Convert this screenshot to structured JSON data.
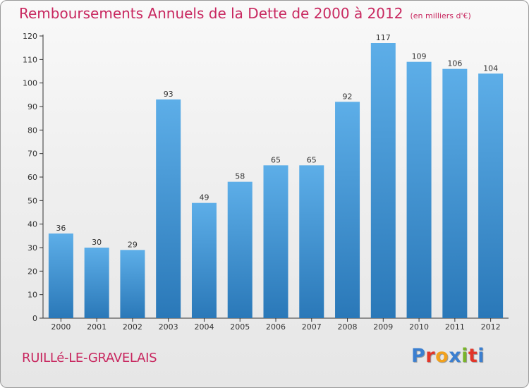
{
  "header": {
    "title": "Remboursements Annuels de la Dette de 2000 à 2012",
    "subtitle": "(en milliers d'€)"
  },
  "footer": {
    "commune": "RUILLé-LE-GRAVELAIS",
    "brand": "Proxiti",
    "brand_colors": [
      "#3b7fd0",
      "#e2362a",
      "#f2a11c",
      "#3b7fd0",
      "#79b42a",
      "#e2362a",
      "#3b7fd0"
    ]
  },
  "colors": {
    "title": "#c8275f",
    "bar_top": "#5daee8",
    "bar_bottom": "#2a78b8",
    "axis": "#333333"
  },
  "chart_data": {
    "type": "bar",
    "title": "Remboursements Annuels de la Dette de 2000 à 2012",
    "subtitle": "(en milliers d'€)",
    "xlabel": "",
    "ylabel": "",
    "categories": [
      "2000",
      "2001",
      "2002",
      "2003",
      "2004",
      "2005",
      "2006",
      "2007",
      "2008",
      "2009",
      "2010",
      "2011",
      "2012"
    ],
    "values": [
      36,
      30,
      29,
      93,
      49,
      58,
      65,
      65,
      92,
      117,
      109,
      106,
      104
    ],
    "ylim": [
      0,
      120
    ],
    "yticks": [
      0,
      10,
      20,
      30,
      40,
      50,
      60,
      70,
      80,
      90,
      100,
      110,
      120
    ],
    "grid": false,
    "legend": "none"
  }
}
